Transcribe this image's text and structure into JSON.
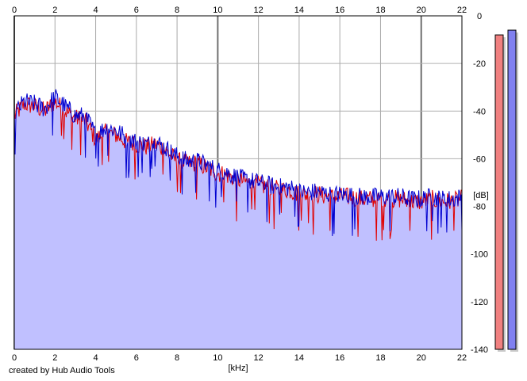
{
  "chart_data": {
    "type": "area",
    "xlabel": "[kHz]",
    "ylabel": "[dB]",
    "xlim": [
      0,
      22
    ],
    "ylim": [
      -140,
      0
    ],
    "x_ticks": [
      "0",
      "2",
      "4",
      "6",
      "8",
      "10",
      "12",
      "14",
      "16",
      "18",
      "20",
      "22"
    ],
    "y_ticks": [
      "0",
      "-20",
      "-40",
      "-60",
      "-80",
      "-100",
      "-120",
      "-140"
    ],
    "grid": true,
    "series": [
      {
        "color": "#e00000",
        "x": [
          0,
          0.5,
          1,
          1.5,
          2,
          2.5,
          3,
          3.5,
          4,
          4.5,
          5,
          5.5,
          6,
          6.5,
          7,
          7.5,
          8,
          8.5,
          9,
          9.5,
          10,
          10.5,
          11,
          11.5,
          12,
          12.5,
          13,
          13.5,
          14,
          14.5,
          15,
          15.5,
          16,
          16.5,
          17,
          17.5,
          18,
          18.5,
          19,
          19.5,
          20,
          20.5,
          21,
          21.5,
          22
        ],
        "values": [
          -42,
          -37,
          -38,
          -40,
          -36,
          -40,
          -43,
          -44,
          -52,
          -49,
          -50,
          -53,
          -54,
          -55,
          -54,
          -57,
          -61,
          -62,
          -62,
          -64,
          -66,
          -67,
          -69,
          -70,
          -71,
          -72,
          -73,
          -73,
          -75,
          -75,
          -75,
          -76,
          -76,
          -76,
          -77,
          -77,
          -77,
          -77,
          -77,
          -78,
          -78,
          -77,
          -78,
          -78,
          -77
        ]
      },
      {
        "color": "#0000d0",
        "x": [
          0,
          0.5,
          1,
          1.5,
          2,
          2.5,
          3,
          3.5,
          4,
          4.5,
          5,
          5.5,
          6,
          6.5,
          7,
          7.5,
          8,
          8.5,
          9,
          9.5,
          10,
          10.5,
          11,
          11.5,
          12,
          12.5,
          13,
          13.5,
          14,
          14.5,
          15,
          15.5,
          16,
          16.5,
          17,
          17.5,
          18,
          18.5,
          19,
          19.5,
          20,
          20.5,
          21,
          21.5,
          22
        ],
        "values": [
          -41,
          -36,
          -37,
          -39,
          -34,
          -38,
          -42,
          -42,
          -50,
          -47,
          -48,
          -51,
          -53,
          -54,
          -53,
          -56,
          -59,
          -61,
          -61,
          -63,
          -65,
          -66,
          -68,
          -69,
          -70,
          -71,
          -72,
          -72,
          -74,
          -74,
          -74,
          -75,
          -75,
          -75,
          -76,
          -76,
          -76,
          -76,
          -76,
          -77,
          -77,
          -76,
          -77,
          -77,
          -76
        ]
      }
    ],
    "level_meters": [
      {
        "color": "#f08080",
        "value": -8
      },
      {
        "color": "#8080f0",
        "value": -6
      }
    ],
    "credit": "created by Hub Audio Tools"
  }
}
